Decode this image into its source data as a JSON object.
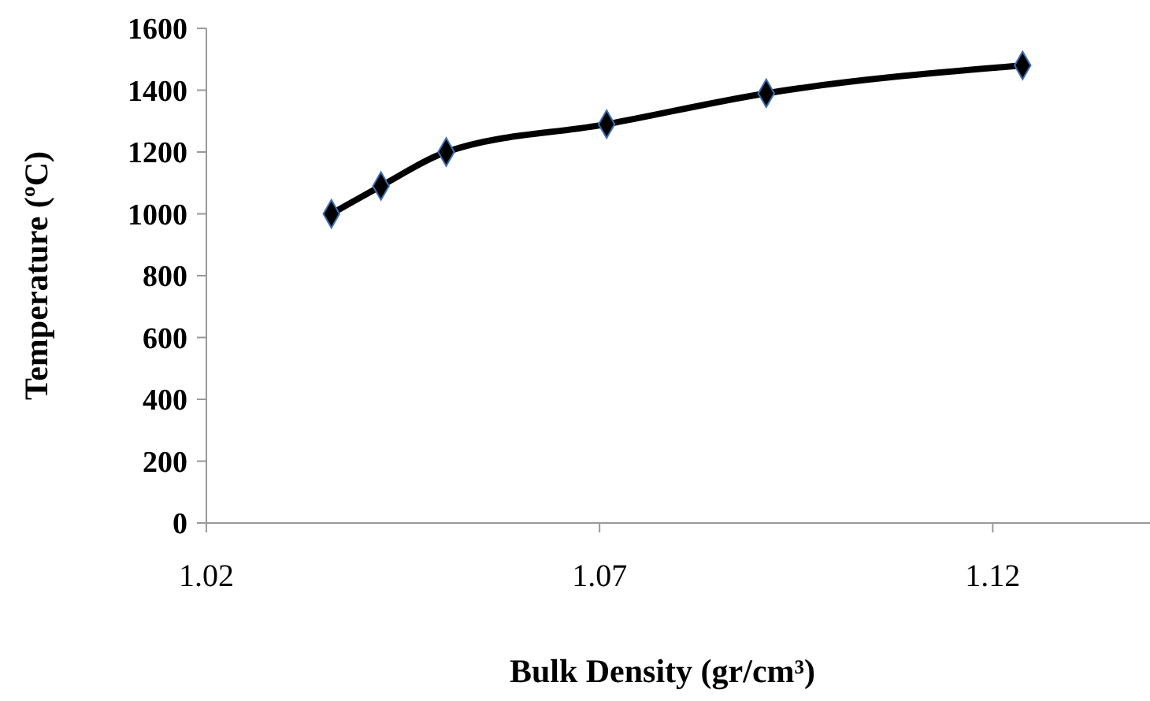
{
  "chart_data": {
    "type": "line",
    "xlabel": "Bulk Density (gr/cm³)",
    "ylabel": "Temperature (ºC)",
    "x": [
      1.0359,
      1.0422,
      1.0505,
      1.0709,
      1.0912,
      1.1238
    ],
    "series": [
      {
        "color": "#000000",
        "values": [
          1000,
          1090,
          1200,
          1290,
          1390,
          1480
        ]
      }
    ],
    "xlim": [
      1.02,
      1.14
    ],
    "xticks": [
      1.02,
      1.07,
      1.12
    ],
    "ylim": [
      0,
      1600
    ],
    "yticks": [
      0,
      200,
      400,
      600,
      800,
      1000,
      1200,
      1400,
      1600
    ],
    "marker": "diamond",
    "line_style": "solid"
  }
}
